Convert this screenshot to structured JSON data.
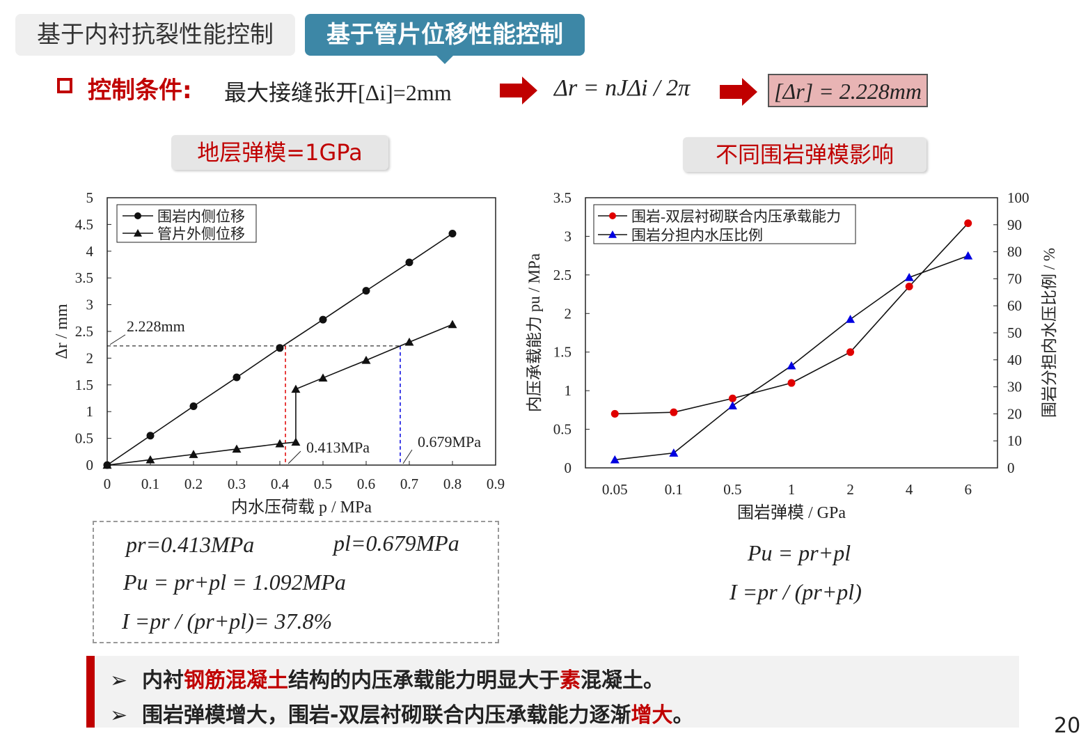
{
  "tabs": [
    {
      "label": "基于内衬抗裂性能控制"
    },
    {
      "label": "基于管片位移性能控制"
    }
  ],
  "condition": {
    "label": "控制条件:",
    "text": "最大接缝张开[Δi]=2mm",
    "formula1": "Δr = nJΔi / 2π",
    "formula2": "[Δr] = 2.228mm"
  },
  "subtitles": {
    "left": "地层弹模=1GPa",
    "right": "不同围岩弹模影响"
  },
  "colors": {
    "accent_red": "#c00000",
    "tab_blue": "#3d87a6",
    "series_red": "#e00000",
    "series_blue": "#0000e0"
  },
  "chart_data": [
    {
      "type": "line",
      "xlabel": "内水压荷载 p / MPa",
      "ylabel": "Δr / mm",
      "xlim": [
        0,
        0.9
      ],
      "ylim": [
        0,
        5
      ],
      "xticks": [
        "0",
        "0.1",
        "0.2",
        "0.3",
        "0.4",
        "0.5",
        "0.6",
        "0.7",
        "0.8",
        "0.9"
      ],
      "yticks": [
        "0",
        "0.5",
        "1",
        "1.5",
        "2",
        "2.5",
        "3",
        "3.5",
        "4",
        "4.5",
        "5"
      ],
      "legend_position": "top-left",
      "series": [
        {
          "name": "围岩内侧位移",
          "marker": "circle",
          "x": [
            0,
            0.1,
            0.2,
            0.3,
            0.4,
            0.5,
            0.6,
            0.7,
            0.8
          ],
          "y": [
            0,
            0.55,
            1.1,
            1.64,
            2.19,
            2.72,
            3.26,
            3.79,
            4.33
          ]
        },
        {
          "name": "管片外侧位移",
          "marker": "triangle",
          "x": [
            0,
            0.1,
            0.2,
            0.3,
            0.4,
            0.437,
            0.437,
            0.5,
            0.6,
            0.7,
            0.8
          ],
          "y": [
            0,
            0.1,
            0.2,
            0.3,
            0.4,
            0.43,
            1.42,
            1.63,
            1.96,
            2.3,
            2.63
          ]
        }
      ],
      "annotations": [
        {
          "text": "2.228mm",
          "value": 2.228
        },
        {
          "text": "0.413MPa",
          "value": 0.413
        },
        {
          "text": "0.679MPa",
          "value": 0.679
        }
      ]
    },
    {
      "type": "line",
      "xlabel": "围岩弹模 / GPa",
      "ylabel": "内压承载能力 pu / MPa",
      "y2label": "围岩分担内水压比例 / %",
      "categories": [
        "0.05",
        "0.1",
        "0.5",
        "1",
        "2",
        "4",
        "6"
      ],
      "ylim": [
        0,
        3.5
      ],
      "y2lim": [
        0,
        100
      ],
      "yticks": [
        "0",
        "0.5",
        "1",
        "1.5",
        "2",
        "2.5",
        "3",
        "3.5"
      ],
      "y2ticks": [
        "0",
        "10",
        "20",
        "30",
        "40",
        "50",
        "60",
        "70",
        "80",
        "90",
        "100"
      ],
      "legend_position": "top-left",
      "series": [
        {
          "name": "围岩-双层衬砌联合内压承载能力",
          "axis": "left",
          "marker": "circle",
          "color": "#e00000",
          "values": [
            0.7,
            0.72,
            0.9,
            1.1,
            1.5,
            2.35,
            3.17
          ]
        },
        {
          "name": "围岩分担内水压比例",
          "axis": "right",
          "marker": "triangle",
          "color": "#0000e0",
          "values": [
            3,
            5.5,
            23,
            37.8,
            55,
            70.5,
            78.5
          ]
        }
      ]
    }
  ],
  "left_formulas": {
    "pr": "pr=0.413MPa",
    "pl": "pl=0.679MPa",
    "pu": "Pu = pr+pl = 1.092MPa",
    "ratio": "I =pr / (pr+pl)= 37.8%"
  },
  "right_formulas": {
    "pu": "Pu = pr+pl",
    "ratio": "I =pr / (pr+pl)"
  },
  "bullets": {
    "b1": {
      "p1": "内衬",
      "p2": "钢筋混凝土",
      "p3": "结构的内压承载能力明显大于",
      "p4": "素",
      "p5": "混凝土。"
    },
    "b2": {
      "p1": "围岩弹模增大，围岩-双层衬砌联合内压承载能力逐渐",
      "p2": "增大",
      "p3": "。"
    }
  },
  "page_number": "20"
}
